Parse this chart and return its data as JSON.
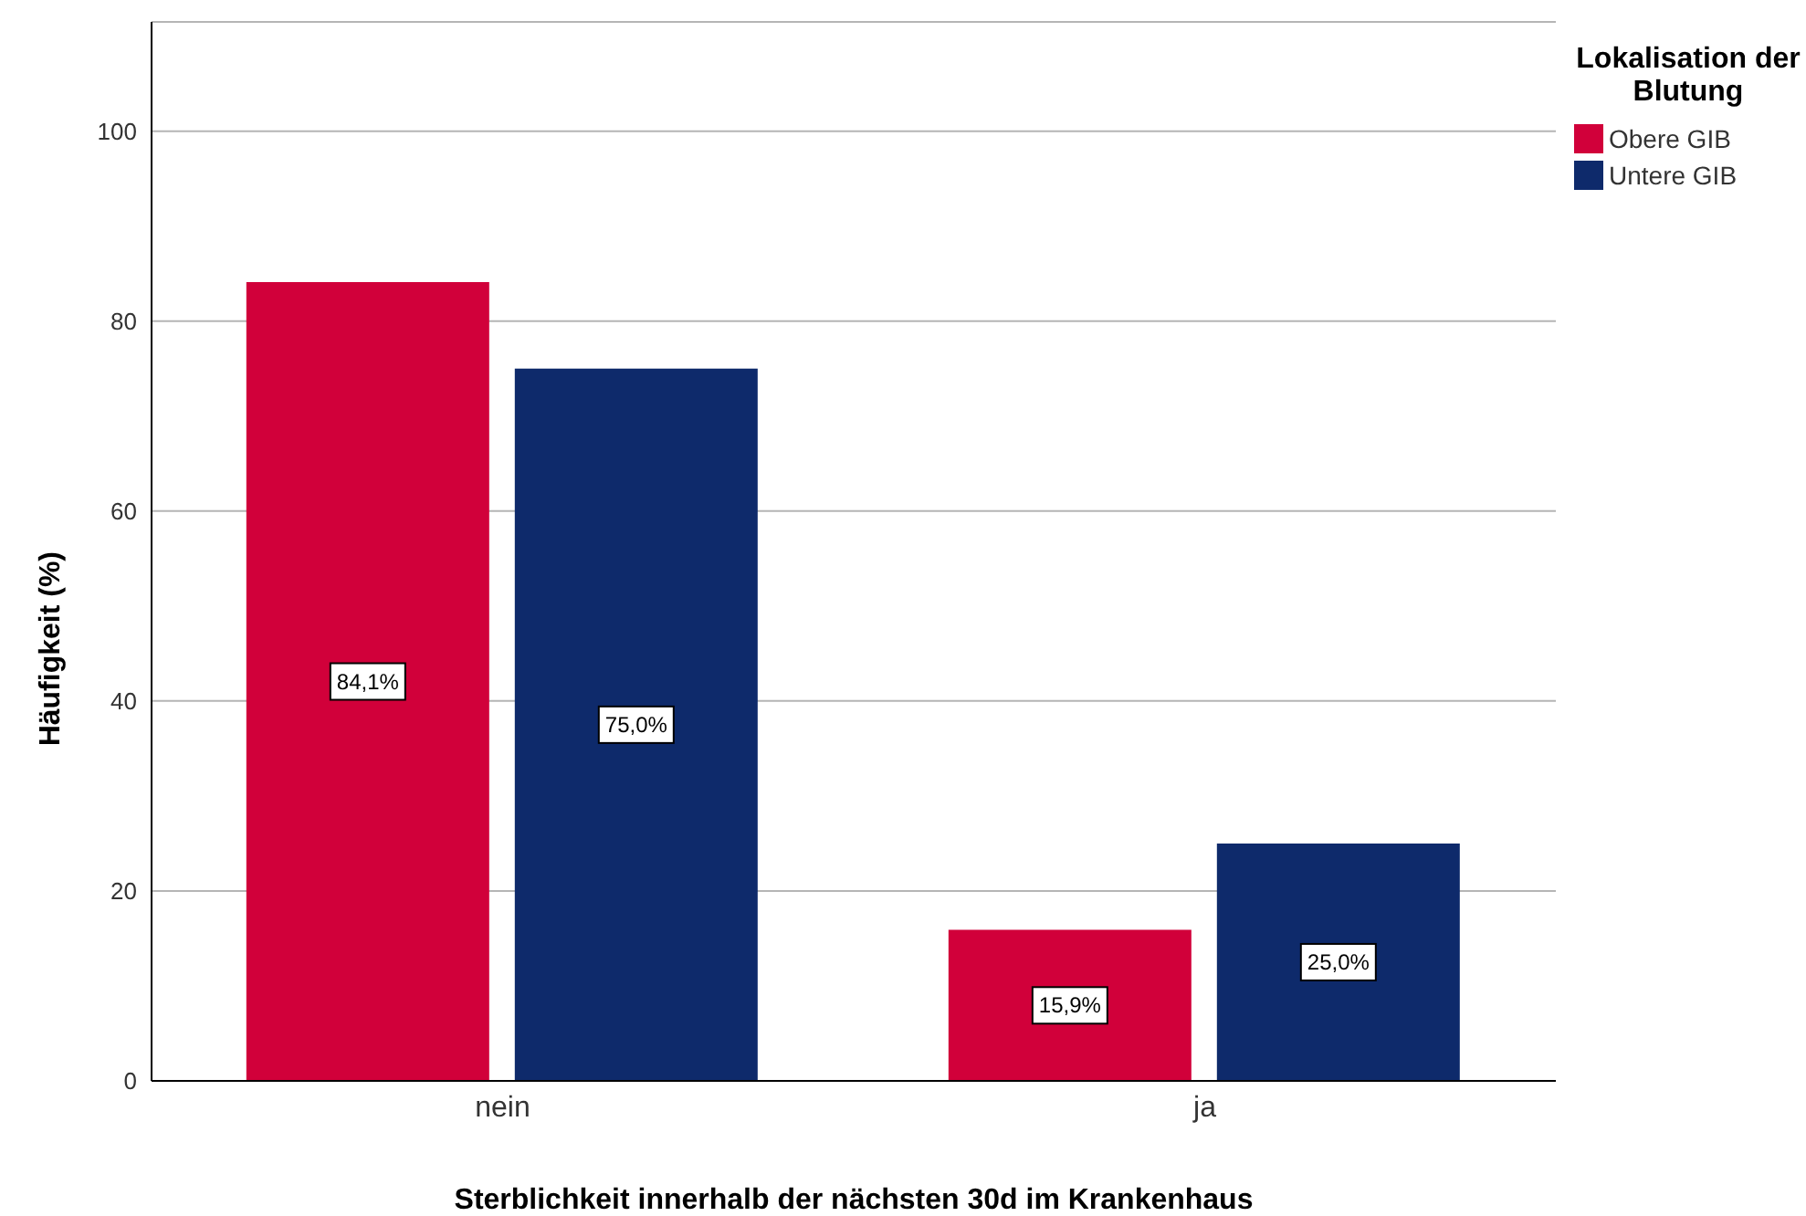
{
  "chart_data": {
    "type": "bar",
    "xlabel": "Sterblichkeit innerhalb der nächsten 30d im Krankenhaus",
    "ylabel": "Häufigkeit (%)",
    "legend_title": "Lokalisation der Blutung",
    "categories": [
      "nein",
      "ja"
    ],
    "series": [
      {
        "name": "Obere GIB",
        "color": "#d1003a",
        "values": [
          84.1,
          15.9
        ],
        "value_labels": [
          "84,1%",
          "15,9%"
        ]
      },
      {
        "name": "Untere GIB",
        "color": "#0e2a6b",
        "values": [
          75.0,
          25.0
        ],
        "value_labels": [
          "75,0%",
          "25,0%"
        ]
      }
    ],
    "ylim": [
      0,
      111.5
    ],
    "yticks": [
      0,
      20,
      40,
      60,
      80,
      100
    ],
    "grid": "y",
    "legend": "top right"
  }
}
